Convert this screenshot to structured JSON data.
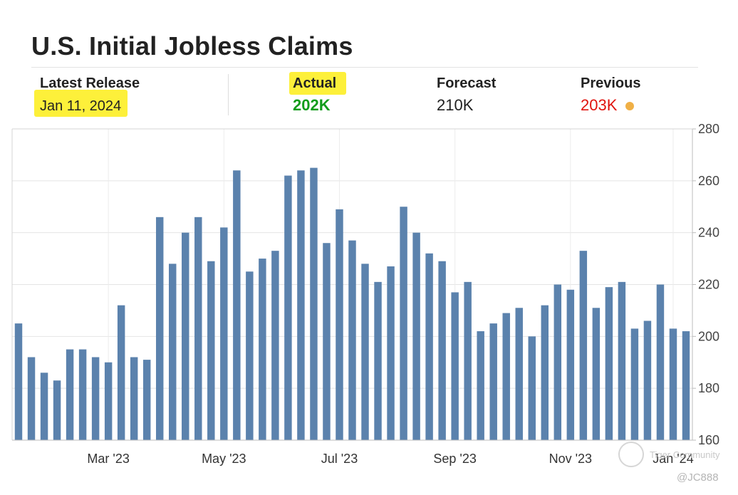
{
  "header": {
    "title": "U.S. Initial Jobless Claims"
  },
  "stats": {
    "latest_release_label": "Latest Release",
    "latest_release_value": "Jan 11, 2024",
    "actual_label": "Actual",
    "actual_value": "202K",
    "forecast_label": "Forecast",
    "forecast_value": "210K",
    "previous_label": "Previous",
    "previous_value": "203K"
  },
  "colors": {
    "bar": "#5b82ad",
    "actual": "#139c1c",
    "previous": "#e0140f",
    "highlight": "#fdf03a",
    "indicator_dot": "#f0b046"
  },
  "watermark": {
    "text": "Tiger Community",
    "handle": "@JC888"
  },
  "chart_data": {
    "type": "bar",
    "title": "",
    "xlabel": "",
    "ylabel": "",
    "ylim": [
      160,
      280
    ],
    "yticks": [
      160,
      180,
      200,
      220,
      240,
      260,
      280
    ],
    "y_axis_position": "right",
    "grid": true,
    "x_tick_labels": [
      "Mar '23",
      "May '23",
      "Jul '23",
      "Sep '23",
      "Nov '23",
      "Jan '24"
    ],
    "x_tick_bar_index": [
      7,
      16,
      25,
      34,
      43,
      51
    ],
    "values": [
      205,
      192,
      186,
      183,
      195,
      195,
      192,
      190,
      212,
      192,
      191,
      246,
      228,
      240,
      246,
      229,
      242,
      264,
      225,
      230,
      233,
      262,
      264,
      265,
      236,
      249,
      237,
      228,
      221,
      227,
      250,
      240,
      232,
      229,
      217,
      221,
      202,
      205,
      209,
      211,
      200,
      212,
      220,
      218,
      233,
      211,
      219,
      221,
      203,
      206,
      220,
      203,
      202
    ]
  }
}
